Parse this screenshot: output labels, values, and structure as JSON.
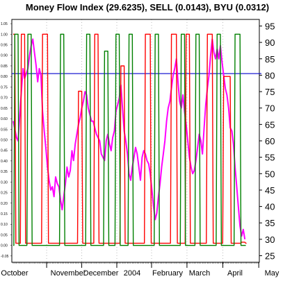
{
  "chart_data": {
    "type": "line",
    "title": "Money Flow Index (29.6235), SELL (0.0143), BYU (0.0312)",
    "xlabel": "",
    "ylabel": "",
    "x_tick_labels": [
      "October",
      "November",
      "December",
      "2004",
      "February",
      "March",
      "April",
      "May"
    ],
    "y_right_ticks": [
      "25",
      "30",
      "35",
      "40",
      "45",
      "50",
      "55",
      "60",
      "65",
      "70",
      "75",
      "80",
      "85",
      "90",
      "95"
    ],
    "y_left_ticks": [
      "1.05",
      "1.00",
      "0.95",
      "0.90",
      "0.85",
      "0.80",
      "0.75",
      "0.70",
      "0.65",
      "0.60",
      "0.55",
      "0.50",
      "0.45",
      "0.40",
      "0.35",
      "0.30",
      "0.25",
      "0.20",
      "0.15",
      "0.10",
      "0.05",
      "0.00",
      "-0.05"
    ],
    "ylim_right": [
      23,
      97
    ],
    "ylim_left": [
      -0.08,
      1.07
    ],
    "reference_line": {
      "value": 80.5,
      "color": "#0000cc"
    },
    "grid": true,
    "legend": "none",
    "n_days": 151,
    "series": [
      {
        "name": "Money Flow Index",
        "color": "#ff00ff",
        "axis": "right",
        "values": [
          [
            0,
            66
          ],
          [
            2,
            61
          ],
          [
            3,
            60
          ],
          [
            5,
            75
          ],
          [
            6,
            82
          ],
          [
            7,
            79
          ],
          [
            9,
            82
          ],
          [
            10,
            86
          ],
          [
            11,
            89
          ],
          [
            12,
            91
          ],
          [
            13,
            87
          ],
          [
            14,
            83
          ],
          [
            15,
            78
          ],
          [
            16,
            82
          ],
          [
            17,
            80
          ],
          [
            18,
            69
          ],
          [
            19,
            63
          ],
          [
            20,
            58
          ],
          [
            21,
            52
          ],
          [
            22,
            48
          ],
          [
            23,
            45
          ],
          [
            24,
            46
          ],
          [
            25,
            43
          ],
          [
            26,
            49
          ],
          [
            27,
            47
          ],
          [
            28,
            46
          ],
          [
            29,
            42
          ],
          [
            30,
            39
          ],
          [
            31,
            43
          ],
          [
            32,
            47
          ],
          [
            33,
            52
          ],
          [
            34,
            49
          ],
          [
            35,
            51
          ],
          [
            36,
            57
          ],
          [
            37,
            54
          ],
          [
            38,
            59
          ],
          [
            39,
            62
          ],
          [
            40,
            65
          ],
          [
            41,
            67
          ],
          [
            42,
            70
          ],
          [
            43,
            72
          ],
          [
            44,
            75
          ],
          [
            45,
            74
          ],
          [
            46,
            70
          ],
          [
            47,
            68
          ],
          [
            48,
            66
          ],
          [
            49,
            66
          ],
          [
            50,
            64
          ],
          [
            51,
            62
          ],
          [
            52,
            61
          ],
          [
            53,
            60
          ],
          [
            54,
            56
          ],
          [
            55,
            55
          ],
          [
            56,
            54
          ],
          [
            57,
            60
          ],
          [
            58,
            62
          ],
          [
            59,
            59
          ],
          [
            60,
            57
          ],
          [
            61,
            61
          ],
          [
            62,
            63
          ],
          [
            63,
            69
          ],
          [
            64,
            71
          ],
          [
            65,
            73
          ],
          [
            66,
            77
          ],
          [
            67,
            70
          ],
          [
            68,
            63
          ],
          [
            69,
            60
          ],
          [
            70,
            56
          ],
          [
            71,
            50
          ],
          [
            72,
            48
          ],
          [
            73,
            52
          ],
          [
            74,
            55
          ],
          [
            75,
            58
          ],
          [
            76,
            56
          ],
          [
            77,
            52
          ],
          [
            78,
            48
          ],
          [
            79,
            55
          ],
          [
            80,
            57
          ],
          [
            81,
            56
          ],
          [
            82,
            54
          ],
          [
            83,
            53
          ],
          [
            84,
            50
          ],
          [
            85,
            45
          ],
          [
            86,
            40
          ],
          [
            87,
            36
          ],
          [
            88,
            38
          ],
          [
            89,
            43
          ],
          [
            90,
            47
          ],
          [
            91,
            52
          ],
          [
            92,
            56
          ],
          [
            93,
            60
          ],
          [
            94,
            66
          ],
          [
            95,
            70
          ],
          [
            96,
            72
          ],
          [
            97,
            76
          ],
          [
            98,
            80
          ],
          [
            99,
            82
          ],
          [
            100,
            85
          ],
          [
            101,
            78
          ],
          [
            102,
            72
          ],
          [
            103,
            70
          ],
          [
            104,
            74
          ],
          [
            105,
            69
          ],
          [
            106,
            65
          ],
          [
            107,
            60
          ],
          [
            108,
            55
          ],
          [
            109,
            52
          ],
          [
            110,
            50
          ],
          [
            111,
            51
          ],
          [
            112,
            54
          ],
          [
            113,
            58
          ],
          [
            114,
            62
          ],
          [
            115,
            60
          ],
          [
            116,
            56
          ],
          [
            117,
            64
          ],
          [
            118,
            71
          ],
          [
            119,
            76
          ],
          [
            120,
            80
          ],
          [
            121,
            86
          ],
          [
            122,
            91
          ],
          [
            123,
            87
          ],
          [
            124,
            85
          ],
          [
            125,
            88
          ],
          [
            126,
            85
          ],
          [
            127,
            89
          ],
          [
            128,
            84
          ],
          [
            129,
            80
          ],
          [
            130,
            76
          ],
          [
            131,
            74
          ],
          [
            132,
            70
          ],
          [
            133,
            64
          ],
          [
            134,
            63
          ],
          [
            135,
            59
          ],
          [
            136,
            52
          ],
          [
            137,
            46
          ],
          [
            138,
            40
          ],
          [
            139,
            34
          ],
          [
            140,
            31
          ],
          [
            141,
            33
          ],
          [
            142,
            30
          ]
        ]
      },
      {
        "name": "SELL",
        "color": "#ff0000",
        "axis": "left",
        "pulses": [
          [
            0,
            1,
            1
          ],
          [
            5,
            7,
            1
          ],
          [
            18,
            21,
            1
          ],
          [
            40,
            42,
            0.73
          ],
          [
            50,
            52,
            1
          ],
          [
            66,
            68,
            0.85
          ],
          [
            81,
            84,
            1
          ],
          [
            97,
            100,
            1
          ],
          [
            106,
            108,
            1
          ],
          [
            119,
            122,
            1
          ],
          [
            129,
            133,
            0.8
          ],
          [
            140,
            142,
            0.015
          ]
        ],
        "baseline": 0.01
      },
      {
        "name": "BYU",
        "color": "#008000",
        "axis": "left",
        "pulses": [
          [
            1,
            3,
            1
          ],
          [
            9,
            11,
            1
          ],
          [
            29,
            31,
            1
          ],
          [
            45,
            47,
            1
          ],
          [
            56,
            58,
            0.92
          ],
          [
            63,
            65,
            1
          ],
          [
            71,
            73,
            1
          ],
          [
            87,
            89,
            1
          ],
          [
            103,
            105,
            1
          ],
          [
            112,
            114,
            1
          ],
          [
            125,
            127,
            1
          ],
          [
            136,
            139,
            1
          ]
        ],
        "baseline": 0.0
      }
    ]
  }
}
